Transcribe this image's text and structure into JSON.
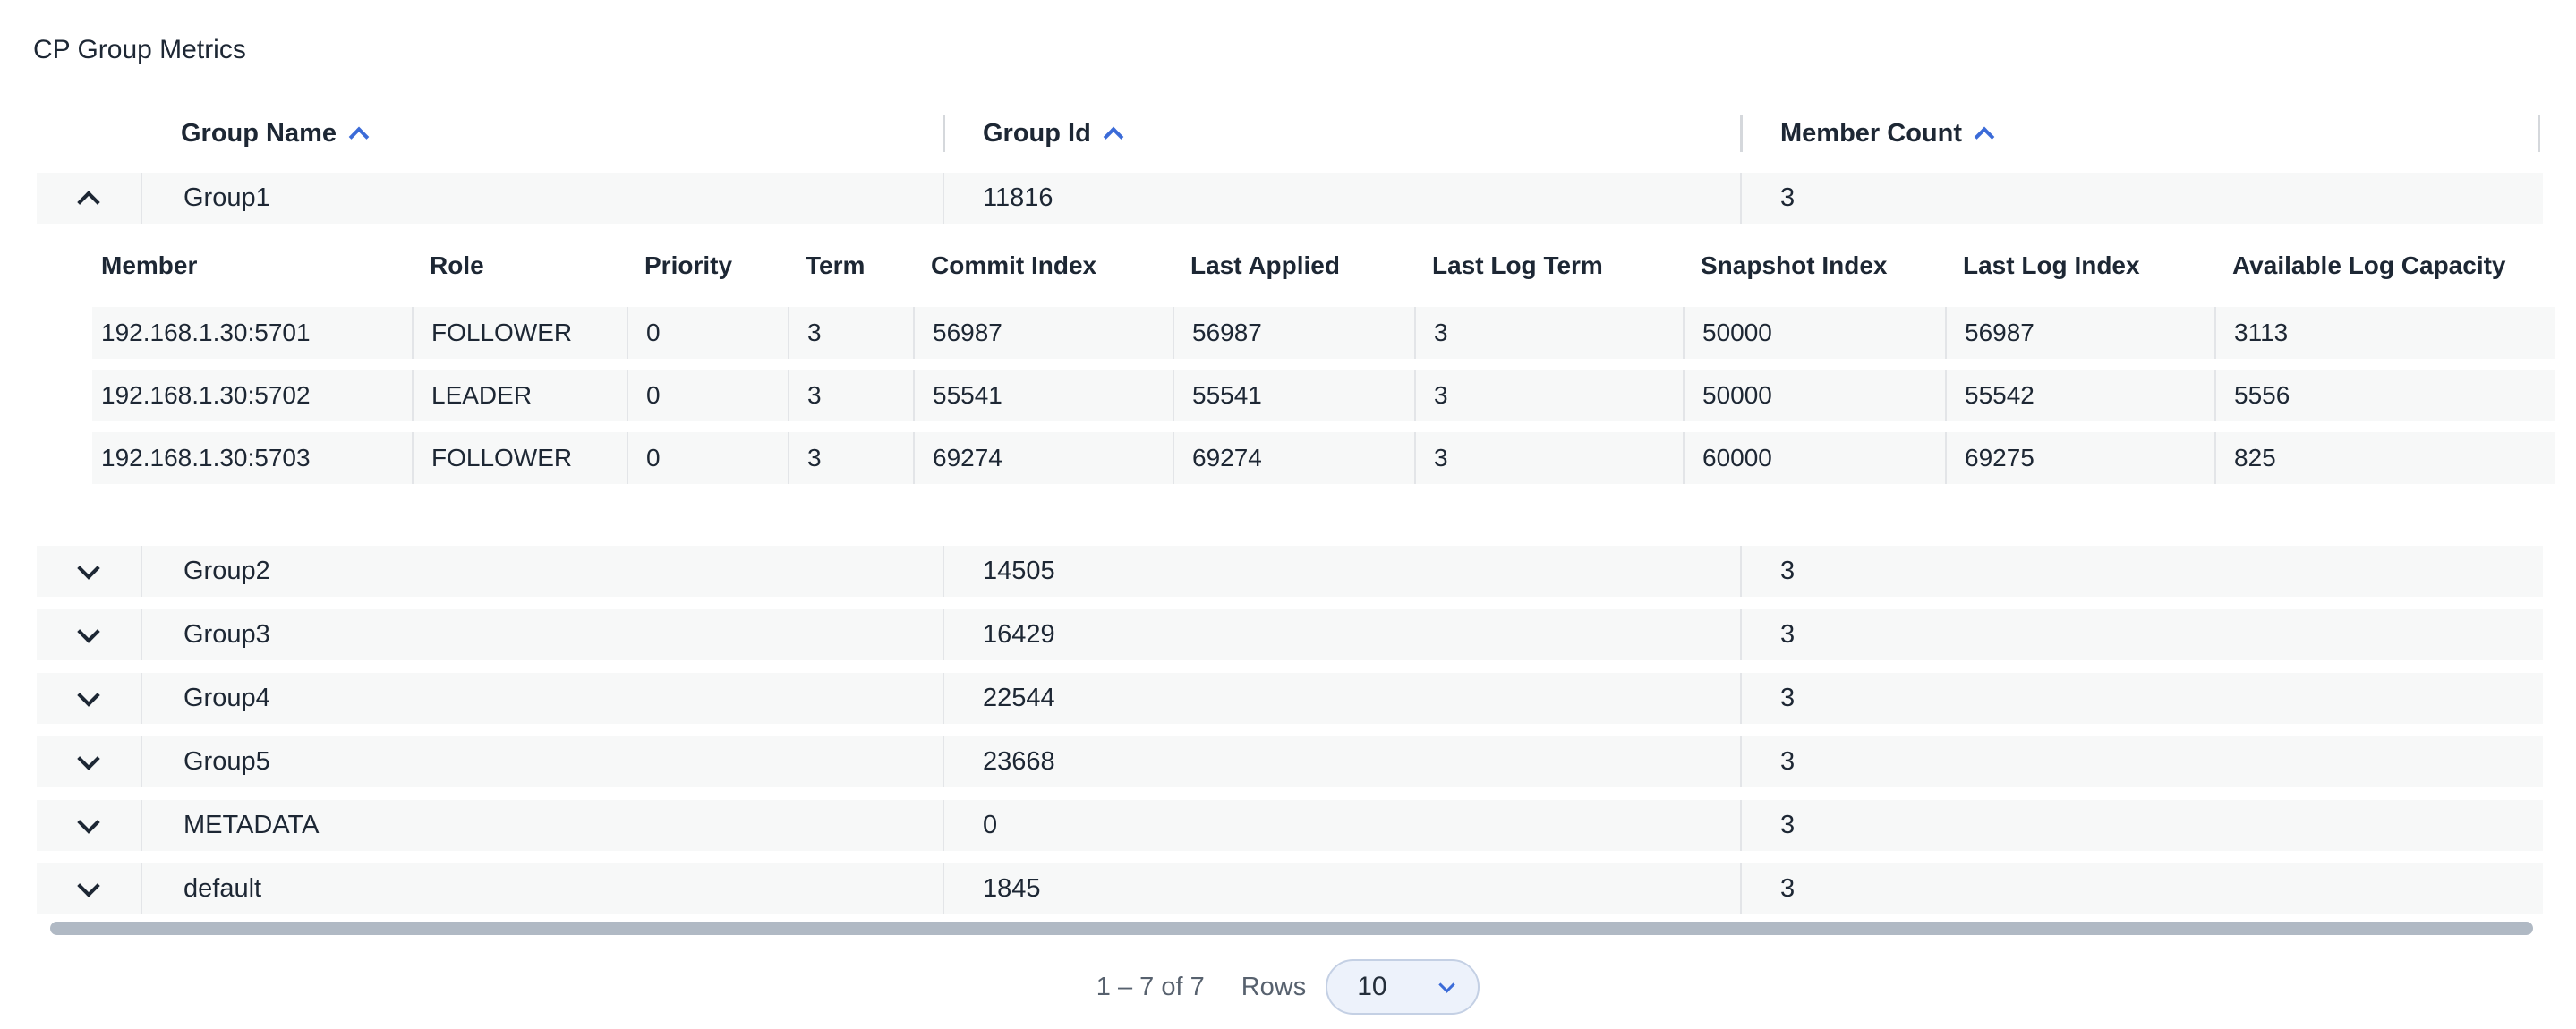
{
  "title": "CP Group Metrics",
  "accent_color": "#3b6bd8",
  "row_background": "#f7f8f8",
  "scrollbar_color": "#b0b9c4",
  "table": {
    "columns": [
      {
        "label": "Group Name",
        "sort_icon": "chevron-up"
      },
      {
        "label": "Group Id",
        "sort_icon": "chevron-up"
      },
      {
        "label": "Member Count",
        "sort_icon": "chevron-up"
      }
    ],
    "groups": [
      {
        "name": "Group1",
        "id": "11816",
        "member_count": "3",
        "expanded": true,
        "members_table": {
          "columns": [
            "Member",
            "Role",
            "Priority",
            "Term",
            "Commit Index",
            "Last Applied",
            "Last Log Term",
            "Snapshot Index",
            "Last Log Index",
            "Available Log Capacity"
          ],
          "rows": [
            [
              "192.168.1.30:5701",
              "FOLLOWER",
              "0",
              "3",
              "56987",
              "56987",
              "3",
              "50000",
              "56987",
              "3113"
            ],
            [
              "192.168.1.30:5702",
              "LEADER",
              "0",
              "3",
              "55541",
              "55541",
              "3",
              "50000",
              "55542",
              "5556"
            ],
            [
              "192.168.1.30:5703",
              "FOLLOWER",
              "0",
              "3",
              "69274",
              "69274",
              "3",
              "60000",
              "69275",
              "825"
            ]
          ]
        }
      },
      {
        "name": "Group2",
        "id": "14505",
        "member_count": "3",
        "expanded": false
      },
      {
        "name": "Group3",
        "id": "16429",
        "member_count": "3",
        "expanded": false
      },
      {
        "name": "Group4",
        "id": "22544",
        "member_count": "3",
        "expanded": false
      },
      {
        "name": "Group5",
        "id": "23668",
        "member_count": "3",
        "expanded": false
      },
      {
        "name": "METADATA",
        "id": "0",
        "member_count": "3",
        "expanded": false
      },
      {
        "name": "default",
        "id": "1845",
        "member_count": "3",
        "expanded": false
      }
    ]
  },
  "pagination": {
    "range_label": "1 – 7 of 7",
    "rows_label": "Rows",
    "rows_per_page": "10"
  }
}
